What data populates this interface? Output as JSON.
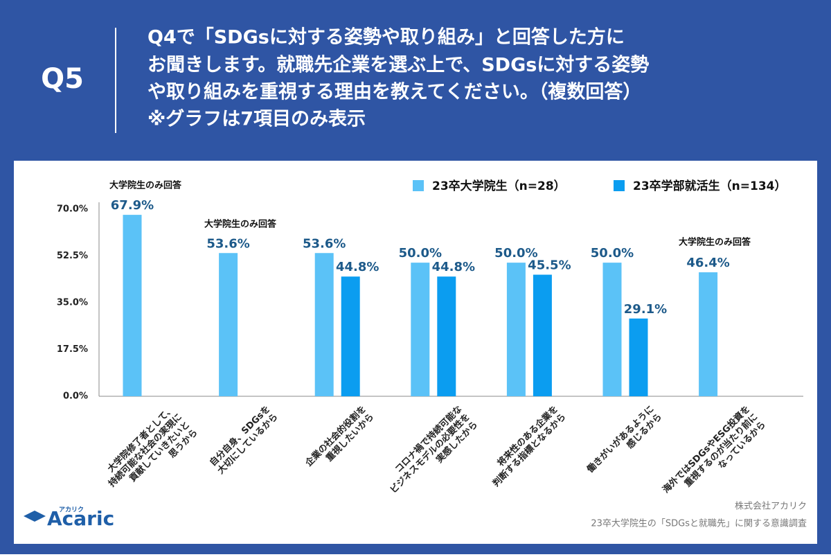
{
  "header": {
    "label": "Q5",
    "question": [
      "Q4で「SDGsに対する姿勢や取り組み」と回答した方に",
      "お聞きします。就職先企業を選ぶ上で、SDGsに対する姿勢",
      "や取り組みを重視する理由を教えてください。（複数回答）",
      "※グラフは7項目のみ表示"
    ]
  },
  "chart_data": {
    "type": "bar",
    "categories": [
      "大学院修了者として、\n持続可能な社会の実現に\n貢献していきたいと\n思うから",
      "自分自身、SDGsを\n大切にしているから",
      "企業の社会的役割を\n重視したいから",
      "コロナ禍で持続可能な\nビジネスモデルの必要性を\n実感したから",
      "将来性のある企業を\n判断する指標となるから",
      "働きがいがあるように\n感じるから",
      "海外ではSDGsやESG投資を\n重視するのが当たり前に\nなっているから"
    ],
    "series": [
      {
        "name": "23卒大学院生（n=28）",
        "color": "#5bc2f7",
        "values": [
          67.9,
          53.6,
          53.6,
          50.0,
          50.0,
          50.0,
          46.4
        ],
        "value_labels": [
          "67.9%",
          "53.6%",
          "53.6%",
          "50.0%",
          "50.0%",
          "50.0%",
          "46.4%"
        ]
      },
      {
        "name": "23卒学部就活生（n=134）",
        "color": "#0b9df0",
        "values": [
          null,
          null,
          44.8,
          44.8,
          45.5,
          29.1,
          null
        ],
        "value_labels": [
          null,
          null,
          "44.8%",
          "44.8%",
          "45.5%",
          "29.1%",
          null
        ]
      }
    ],
    "ylim": [
      0,
      70
    ],
    "yticks": [
      {
        "value": 0,
        "label": "0.0%"
      },
      {
        "value": 17.5,
        "label": "17.5%"
      },
      {
        "value": 35,
        "label": "35.0%"
      },
      {
        "value": 52.5,
        "label": "52.5%"
      },
      {
        "value": 70,
        "label": "70.0%"
      }
    ],
    "annotations": [
      "大学院生のみ回答",
      "大学院生のみ回答",
      "大学院生のみ回答"
    ]
  },
  "footer": {
    "logo": "Acaric",
    "logo_kana": "アカリク",
    "company": "株式会社アカリク",
    "survey": "23卒大学院生の「SDGsと就職先」に関する意識調査"
  }
}
